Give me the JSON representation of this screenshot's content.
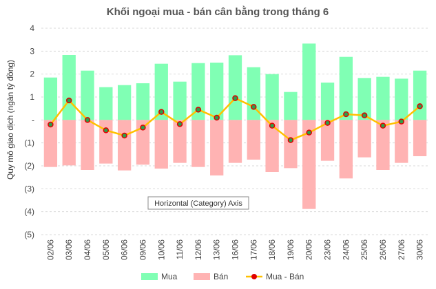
{
  "chart_data": {
    "type": "bar",
    "title": "Khối ngoại mua - bán cân bằng trong tháng 6",
    "ylabel": "Quy mô giao dịch (ngàn tỷ đồng)",
    "xlabel": "",
    "ylim": [
      -5,
      4
    ],
    "yticks": [
      4,
      3,
      2,
      1,
      0,
      -1,
      -2,
      -3,
      -4,
      -5
    ],
    "ytick_labels": [
      "4",
      "3",
      "2",
      "1",
      "-",
      "(1)",
      "(2)",
      "(3)",
      "(4)",
      "(5)"
    ],
    "grid": true,
    "legend_position": "bottom",
    "categories": [
      "02/06",
      "03/06",
      "04/06",
      "05/06",
      "06/06",
      "09/06",
      "10/06",
      "11/06",
      "12/06",
      "13/06",
      "16/06",
      "17/06",
      "18/06",
      "19/06",
      "20/06",
      "23/06",
      "24/06",
      "25/06",
      "26/06",
      "27/06",
      "30/06"
    ],
    "series": [
      {
        "name": "Mua",
        "kind": "bar",
        "color": "#80FFB4",
        "values": [
          1.85,
          2.83,
          2.15,
          1.43,
          1.52,
          1.6,
          2.45,
          1.67,
          2.48,
          2.5,
          2.82,
          2.3,
          2.0,
          1.22,
          3.33,
          1.63,
          2.75,
          1.83,
          1.88,
          1.8,
          2.15
        ]
      },
      {
        "name": "Bán",
        "kind": "bar",
        "color": "#FFB3B3",
        "values": [
          -2.05,
          -1.98,
          -2.18,
          -1.9,
          -2.2,
          -1.95,
          -2.12,
          -1.87,
          -2.05,
          -2.42,
          -1.87,
          -1.73,
          -2.27,
          -2.1,
          -3.88,
          -1.78,
          -2.55,
          -1.63,
          -2.18,
          -1.87,
          -1.58
        ]
      },
      {
        "name": "Mua - Bán",
        "kind": "line",
        "color": "#FFC000",
        "marker_fill": "#2E9E4A",
        "marker_stroke": "#E00000",
        "values": [
          -0.2,
          0.85,
          0.0,
          -0.45,
          -0.68,
          -0.33,
          0.35,
          -0.18,
          0.45,
          0.1,
          0.95,
          0.57,
          -0.25,
          -0.88,
          -0.55,
          -0.13,
          0.25,
          0.2,
          -0.25,
          -0.07,
          0.6
        ]
      }
    ]
  },
  "tooltip": {
    "text": "Horizontal (Category) Axis"
  }
}
